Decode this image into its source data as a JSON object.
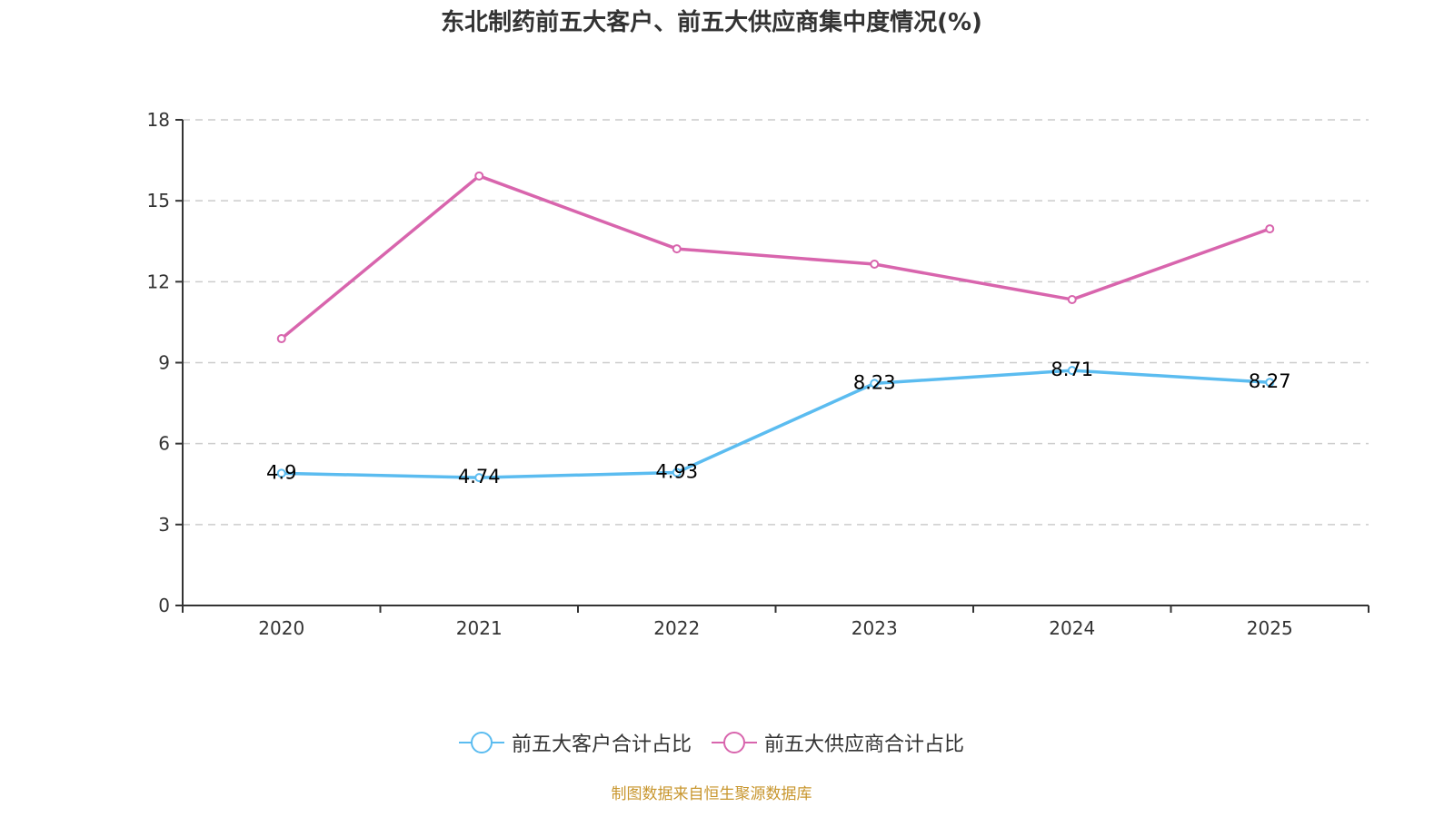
{
  "chart_data": {
    "type": "line",
    "title": "东北制药前五大客户、前五大供应商集中度情况(%)",
    "xlabel": "",
    "ylabel": "",
    "categories": [
      "2020",
      "2021",
      "2022",
      "2023",
      "2024",
      "2025"
    ],
    "ylim": [
      0,
      18
    ],
    "yticks": [
      0,
      3,
      6,
      9,
      12,
      15,
      18
    ],
    "grid": true,
    "legend_position": "bottom",
    "series": [
      {
        "name": "前五大客户合计占比",
        "color": "#5bbcf0",
        "values": [
          4.9,
          4.74,
          4.93,
          8.23,
          8.71,
          8.27
        ],
        "labels": [
          "4.9",
          "4.74",
          "4.93",
          "8.23",
          "8.71",
          "8.27"
        ],
        "show_labels": true
      },
      {
        "name": "前五大供应商合计占比",
        "color": "#d865ad",
        "values": [
          9.89,
          15.92,
          13.22,
          12.65,
          11.34,
          13.96
        ],
        "show_labels": false
      }
    ]
  },
  "footer": "制图数据来自恒生聚源数据库"
}
